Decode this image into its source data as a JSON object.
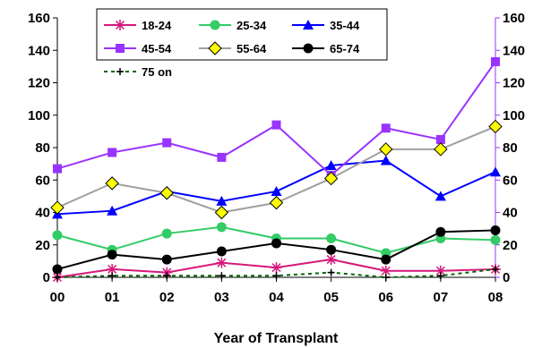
{
  "chart_data": {
    "type": "line",
    "title": "",
    "xlabel": "Year of Transplant",
    "ylabel": "",
    "categories": [
      "00",
      "01",
      "02",
      "03",
      "04",
      "05",
      "06",
      "07",
      "08"
    ],
    "ylim": [
      0,
      160
    ],
    "yticks": [
      0,
      20,
      40,
      60,
      80,
      100,
      120,
      140,
      160
    ],
    "grid": false,
    "secondary_axis": "right, same scale (0-160)",
    "legend_placement": "top-center",
    "series": [
      {
        "name": "18-24",
        "color": "#d6187a",
        "marker": "asterisk",
        "dash": "solid",
        "values": [
          0,
          5,
          3,
          9,
          6,
          11,
          4,
          4,
          5
        ]
      },
      {
        "name": "25-34",
        "color": "#33cc66",
        "marker": "circle",
        "dash": "solid",
        "values": [
          26,
          17,
          27,
          31,
          24,
          24,
          15,
          24,
          23
        ]
      },
      {
        "name": "35-44",
        "color": "#0000ff",
        "marker": "triangle",
        "dash": "solid",
        "values": [
          39,
          41,
          53,
          47,
          53,
          69,
          72,
          50,
          65
        ]
      },
      {
        "name": "45-54",
        "color": "#9933ff",
        "marker": "square",
        "dash": "solid",
        "values": [
          67,
          77,
          83,
          74,
          94,
          63,
          92,
          85,
          133
        ]
      },
      {
        "name": "55-64",
        "color": "#a0a0a0",
        "marker": "diamond",
        "dash": "solid",
        "values": [
          43,
          58,
          52,
          40,
          46,
          61,
          79,
          79,
          93
        ]
      },
      {
        "name": "65-74",
        "color": "#000000",
        "marker": "circle",
        "dash": "solid",
        "values": [
          5,
          14,
          11,
          16,
          21,
          17,
          11,
          28,
          29
        ]
      },
      {
        "name": "75 on",
        "color": "#006600",
        "marker": "plus",
        "dash": "dashed",
        "values": [
          0,
          1,
          1,
          1,
          1,
          3,
          0,
          1,
          5
        ]
      }
    ]
  }
}
